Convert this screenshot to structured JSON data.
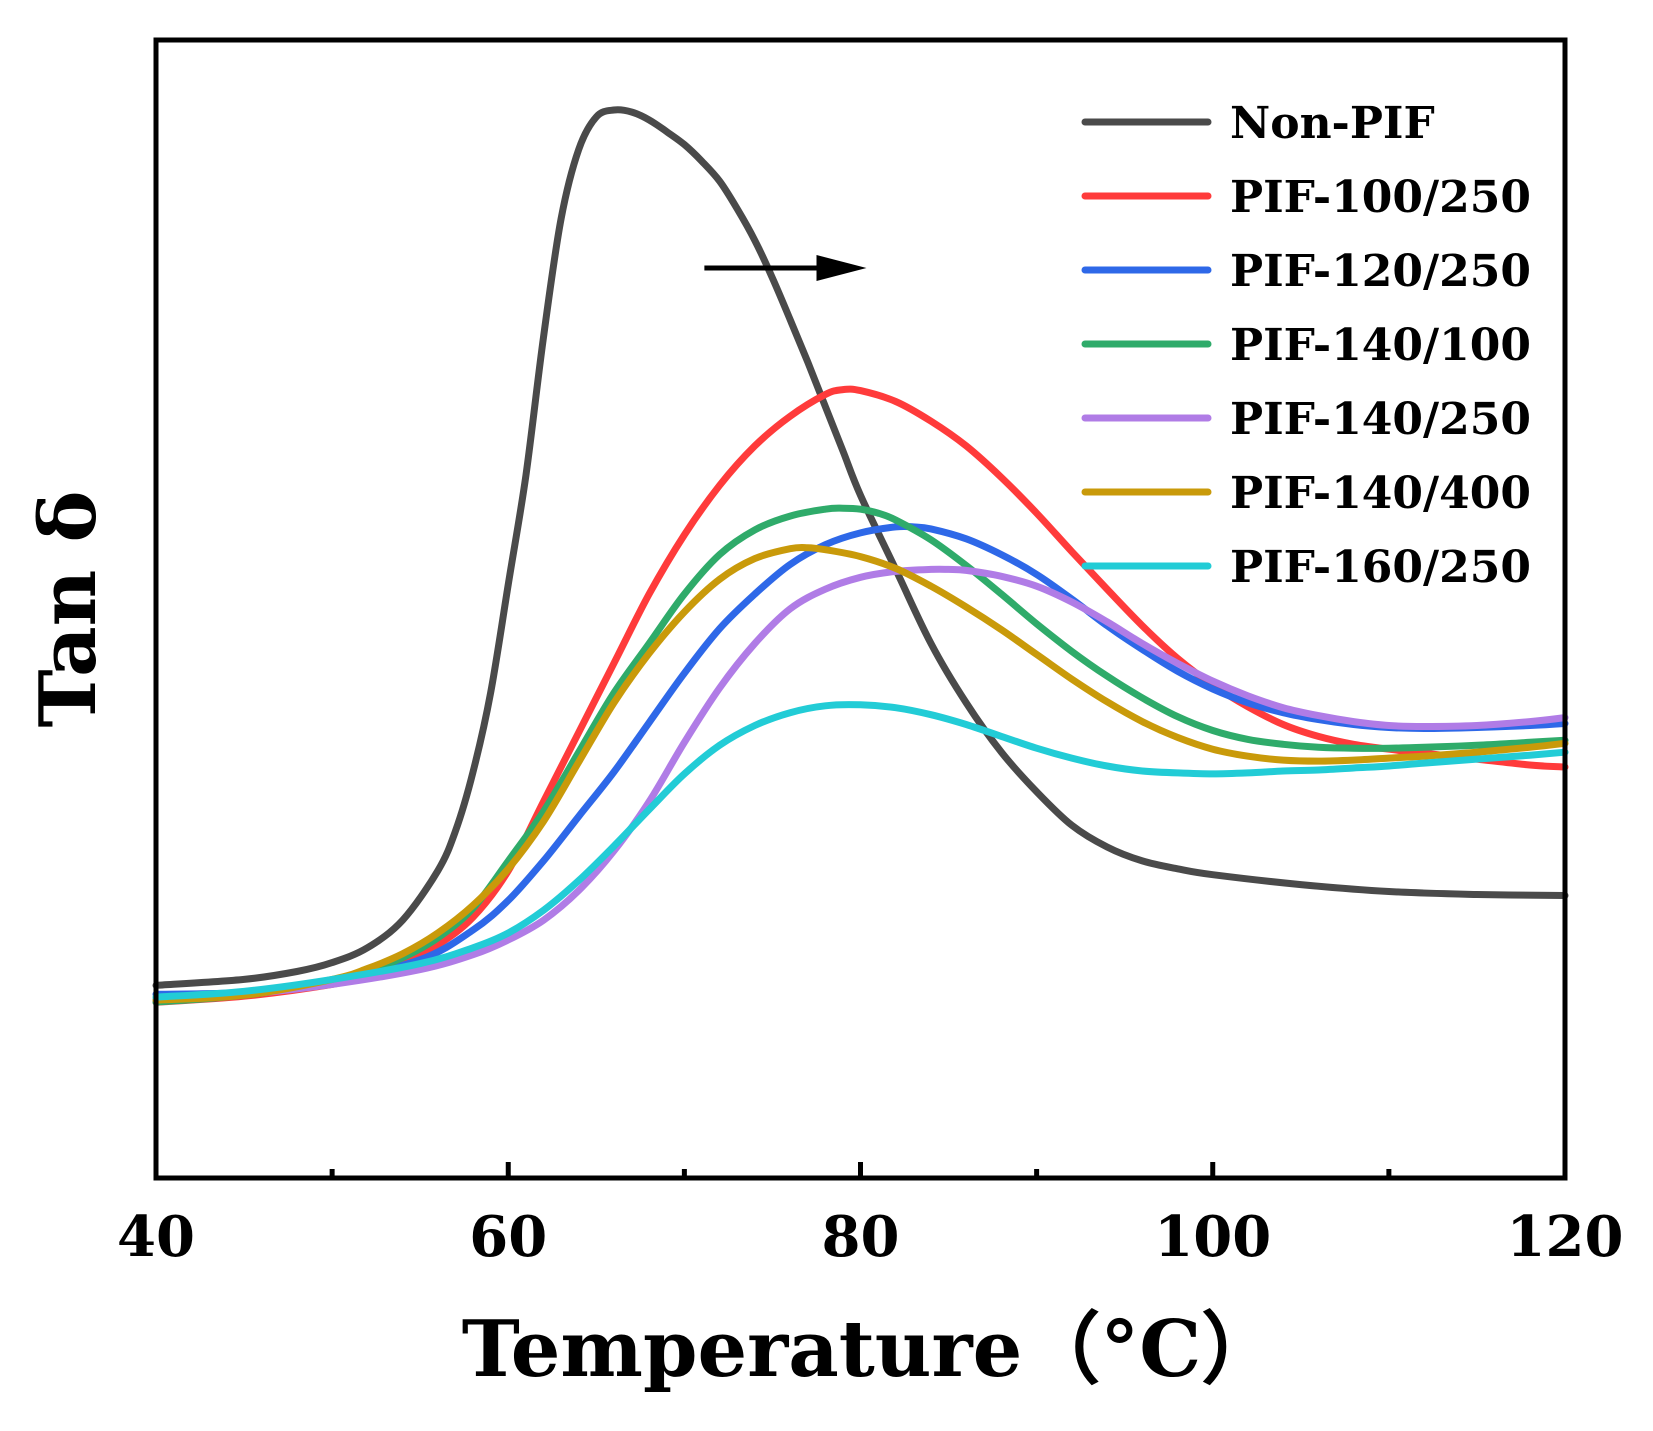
{
  "chart_data": {
    "type": "line",
    "title": "",
    "xlabel": "Temperature（°C）",
    "ylabel": "Tan δ",
    "xlim": [
      40,
      120
    ],
    "ylim": [
      0,
      1
    ],
    "xticks": [
      40,
      60,
      80,
      100,
      120
    ],
    "xticks_minor": [
      50,
      70,
      90,
      110
    ],
    "yticks": [],
    "grid": false,
    "legend": "top-right",
    "annotation": {
      "type": "arrow",
      "from": [
        70,
        0.88
      ],
      "to": [
        80,
        0.88
      ],
      "label": ""
    },
    "series": [
      {
        "name": "Non-PIF",
        "color": "#4a4a4a",
        "x": [
          40,
          45,
          48,
          50,
          52,
          54,
          56,
          57,
          58,
          59,
          60,
          61,
          62,
          63,
          64,
          65,
          66,
          67,
          68,
          69,
          70,
          71,
          72,
          73,
          74,
          75,
          76,
          77,
          78,
          79,
          80,
          82,
          84,
          86,
          88,
          90,
          92,
          94,
          96,
          98,
          100,
          105,
          110,
          115,
          120
        ],
        "y": [
          0.114,
          0.12,
          0.128,
          0.137,
          0.152,
          0.18,
          0.23,
          0.27,
          0.33,
          0.41,
          0.52,
          0.63,
          0.77,
          0.89,
          0.96,
          0.993,
          1.0,
          0.998,
          0.99,
          0.978,
          0.965,
          0.948,
          0.928,
          0.9,
          0.868,
          0.83,
          0.788,
          0.745,
          0.7,
          0.655,
          0.61,
          0.535,
          0.46,
          0.4,
          0.35,
          0.31,
          0.276,
          0.254,
          0.24,
          0.232,
          0.226,
          0.216,
          0.209,
          0.206,
          0.205
        ]
      },
      {
        "name": "PIF-100/250",
        "color": "#ff3b3b",
        "x": [
          40,
          45,
          50,
          52,
          54,
          56,
          58,
          60,
          62,
          64,
          66,
          68,
          70,
          72,
          74,
          76,
          78,
          79,
          80,
          82,
          84,
          86,
          88,
          90,
          92,
          94,
          96,
          98,
          100,
          102,
          104,
          106,
          108,
          110,
          112,
          115,
          118,
          120
        ],
        "y": [
          0.097,
          0.103,
          0.115,
          0.124,
          0.137,
          0.155,
          0.183,
          0.23,
          0.3,
          0.37,
          0.44,
          0.51,
          0.57,
          0.62,
          0.66,
          0.69,
          0.712,
          0.717,
          0.716,
          0.705,
          0.685,
          0.66,
          0.628,
          0.592,
          0.553,
          0.515,
          0.478,
          0.445,
          0.418,
          0.396,
          0.378,
          0.366,
          0.358,
          0.353,
          0.349,
          0.343,
          0.337,
          0.335
        ]
      },
      {
        "name": "PIF-120/250",
        "color": "#2e68e8",
        "x": [
          40,
          45,
          50,
          55,
          58,
          60,
          62,
          64,
          66,
          68,
          70,
          72,
          74,
          76,
          78,
          80,
          82,
          83,
          84,
          86,
          88,
          90,
          92,
          94,
          96,
          98,
          100,
          102,
          104,
          106,
          108,
          110,
          112,
          115,
          118,
          120
        ],
        "y": [
          0.105,
          0.107,
          0.118,
          0.14,
          0.17,
          0.2,
          0.24,
          0.285,
          0.33,
          0.38,
          0.43,
          0.475,
          0.51,
          0.54,
          0.56,
          0.572,
          0.578,
          0.578,
          0.576,
          0.566,
          0.55,
          0.53,
          0.505,
          0.478,
          0.454,
          0.432,
          0.414,
          0.4,
          0.39,
          0.383,
          0.378,
          0.375,
          0.374,
          0.375,
          0.377,
          0.379
        ]
      },
      {
        "name": "PIF-140/100",
        "color": "#2fab6a",
        "x": [
          40,
          45,
          50,
          52,
          54,
          56,
          58,
          60,
          62,
          64,
          66,
          68,
          70,
          72,
          74,
          76,
          78,
          79,
          80,
          81,
          82,
          84,
          86,
          88,
          90,
          92,
          94,
          96,
          98,
          100,
          102,
          104,
          106,
          108,
          110,
          112,
          115,
          118,
          120
        ],
        "y": [
          0.097,
          0.104,
          0.118,
          0.128,
          0.142,
          0.162,
          0.192,
          0.24,
          0.29,
          0.35,
          0.41,
          0.46,
          0.51,
          0.55,
          0.575,
          0.589,
          0.596,
          0.597,
          0.596,
          0.592,
          0.585,
          0.565,
          0.539,
          0.51,
          0.48,
          0.452,
          0.427,
          0.405,
          0.386,
          0.372,
          0.363,
          0.358,
          0.355,
          0.354,
          0.354,
          0.355,
          0.357,
          0.36,
          0.362
        ]
      },
      {
        "name": "PIF-140/250",
        "color": "#b07ce6",
        "x": [
          40,
          45,
          50,
          55,
          58,
          60,
          62,
          64,
          66,
          68,
          70,
          72,
          74,
          76,
          78,
          80,
          82,
          84,
          85,
          86,
          88,
          90,
          92,
          94,
          96,
          98,
          100,
          102,
          104,
          106,
          108,
          110,
          112,
          115,
          118,
          120
        ],
        "y": [
          0.1,
          0.105,
          0.115,
          0.13,
          0.145,
          0.16,
          0.18,
          0.21,
          0.25,
          0.3,
          0.36,
          0.415,
          0.46,
          0.495,
          0.515,
          0.527,
          0.533,
          0.535,
          0.535,
          0.534,
          0.528,
          0.518,
          0.502,
          0.482,
          0.46,
          0.44,
          0.422,
          0.407,
          0.395,
          0.387,
          0.381,
          0.377,
          0.376,
          0.377,
          0.381,
          0.385
        ]
      },
      {
        "name": "PIF-140/400",
        "color": "#c99a0a",
        "x": [
          40,
          45,
          50,
          52,
          54,
          56,
          58,
          60,
          62,
          64,
          66,
          68,
          70,
          72,
          74,
          76,
          77,
          78,
          80,
          82,
          84,
          86,
          88,
          90,
          92,
          94,
          96,
          98,
          100,
          102,
          104,
          106,
          108,
          110,
          112,
          115,
          118,
          120
        ],
        "y": [
          0.099,
          0.104,
          0.12,
          0.131,
          0.146,
          0.167,
          0.195,
          0.232,
          0.28,
          0.34,
          0.4,
          0.45,
          0.492,
          0.525,
          0.546,
          0.556,
          0.557,
          0.555,
          0.548,
          0.536,
          0.518,
          0.497,
          0.474,
          0.449,
          0.424,
          0.401,
          0.381,
          0.365,
          0.353,
          0.346,
          0.342,
          0.341,
          0.342,
          0.344,
          0.346,
          0.35,
          0.355,
          0.359
        ]
      },
      {
        "name": "PIF-160/250",
        "color": "#22ccd6",
        "x": [
          40,
          45,
          50,
          55,
          58,
          60,
          62,
          64,
          66,
          68,
          70,
          72,
          74,
          76,
          78,
          80,
          82,
          84,
          86,
          88,
          90,
          92,
          94,
          96,
          98,
          100,
          102,
          104,
          106,
          108,
          110,
          112,
          115,
          118,
          120
        ],
        "y": [
          0.102,
          0.108,
          0.12,
          0.136,
          0.152,
          0.167,
          0.19,
          0.22,
          0.255,
          0.292,
          0.328,
          0.357,
          0.377,
          0.39,
          0.397,
          0.398,
          0.395,
          0.388,
          0.378,
          0.366,
          0.354,
          0.344,
          0.336,
          0.331,
          0.329,
          0.328,
          0.329,
          0.331,
          0.332,
          0.334,
          0.336,
          0.339,
          0.343,
          0.347,
          0.35
        ]
      }
    ]
  }
}
